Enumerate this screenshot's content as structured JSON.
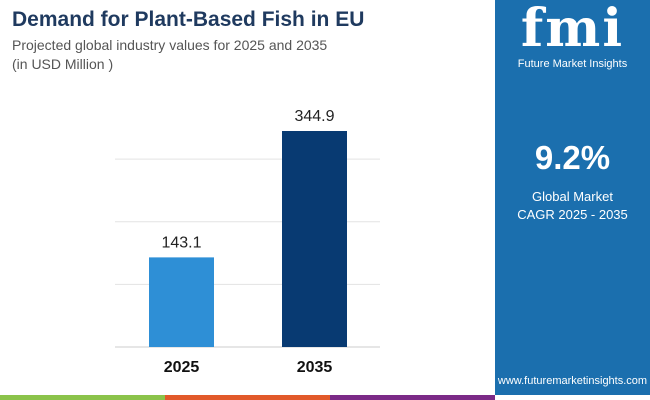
{
  "chart_data": {
    "type": "bar",
    "title": "Demand for Plant-Based Fish in EU",
    "subtitle": [
      "Projected global industry values for 2025 and 2035",
      "(in USD Million )"
    ],
    "categories": [
      "2025",
      "2035"
    ],
    "values": [
      143.1,
      344.9
    ],
    "colors": [
      "#2e8fd6",
      "#083a72"
    ],
    "ylim": [
      0,
      400
    ],
    "grid": true,
    "xlabel": "",
    "ylabel": ""
  },
  "panel": {
    "logo_text": "fmi",
    "logo_caption": "Future Market Insights",
    "cagr": "9.2%",
    "cagr_label1": "Global Market",
    "cagr_label2": "CAGR 2025 - 2035",
    "website": "www.futuremarketinsights.com",
    "color": "#1b6fae"
  },
  "stripe_colors": [
    "#8bc34a",
    "#e2592a",
    "#7b2a87"
  ]
}
